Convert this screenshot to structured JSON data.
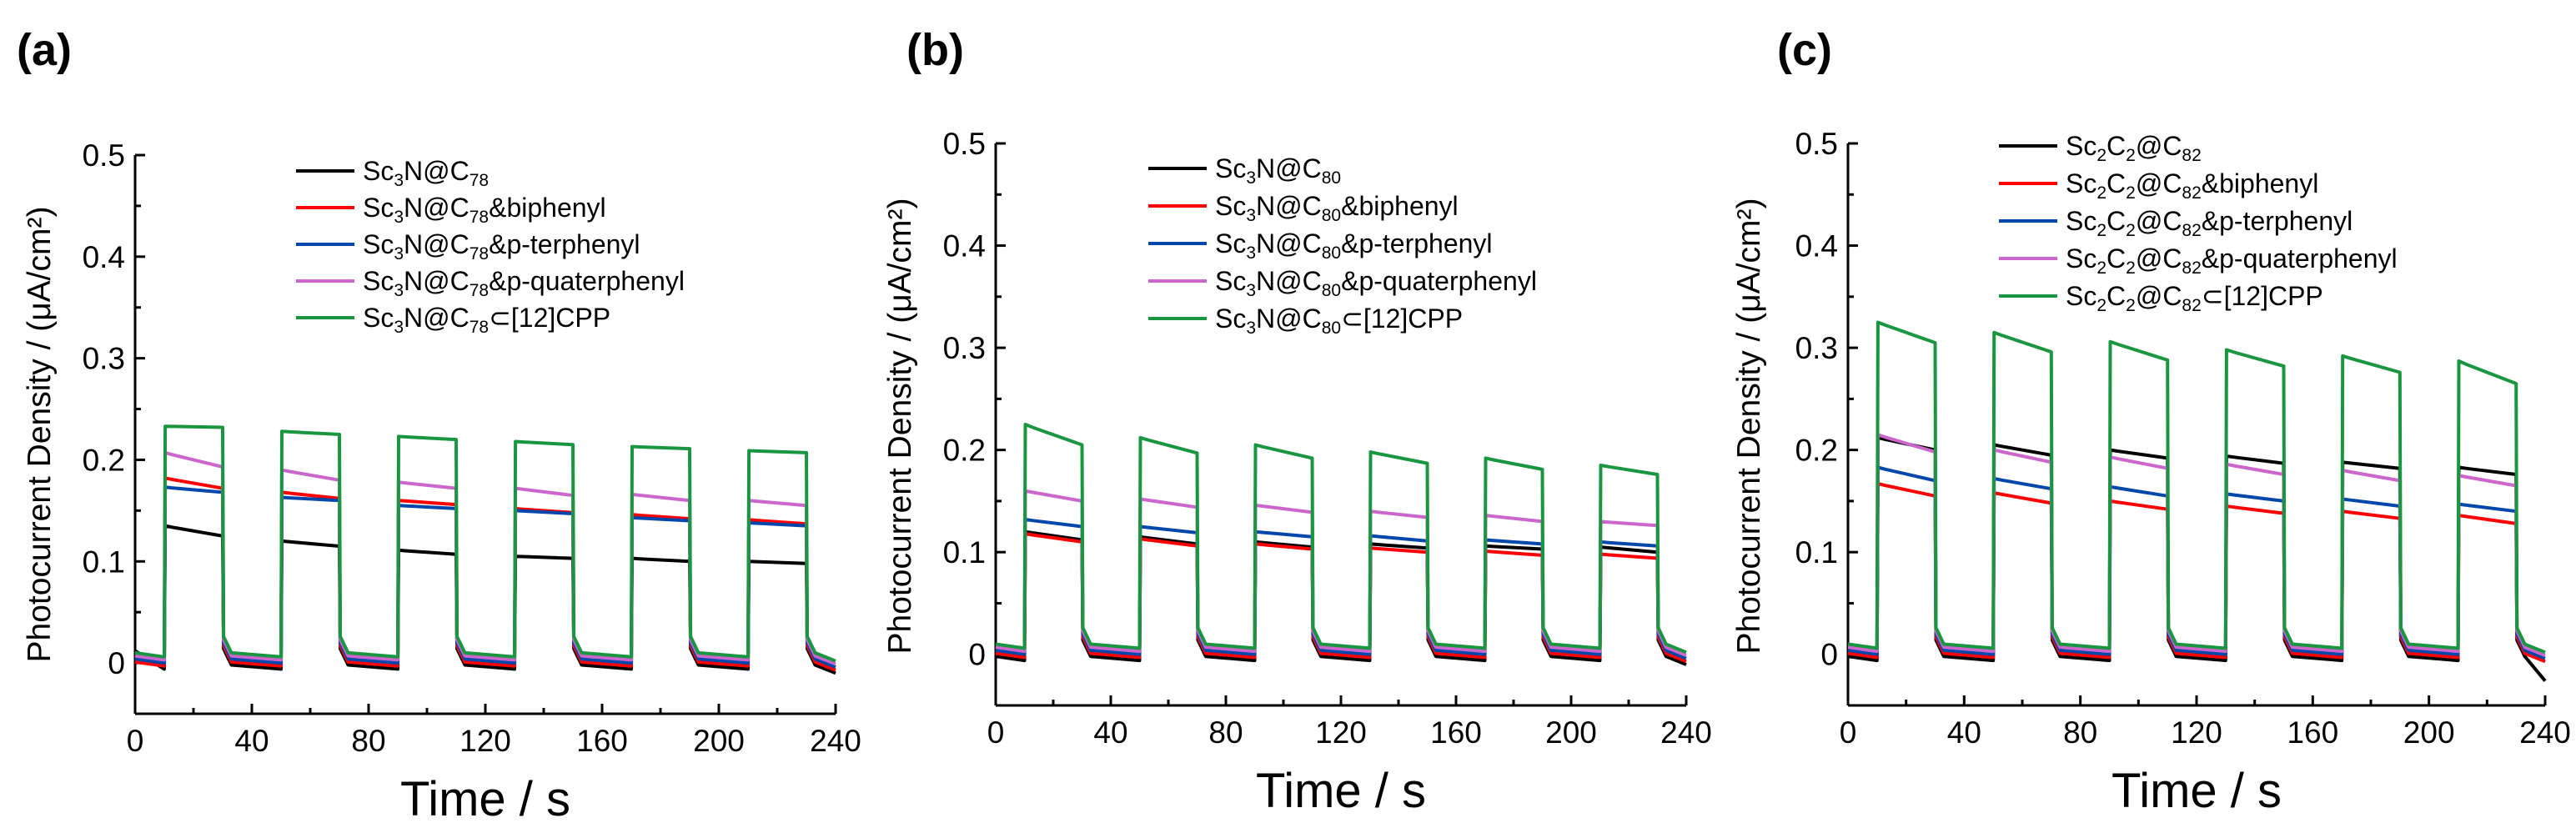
{
  "chart_data": [
    {
      "panel": "(a)",
      "type": "line",
      "xlabel": "Time / s",
      "ylabel": "Photocurrent Density / (μA/cm²)",
      "xlim": [
        0,
        240
      ],
      "ylim": [
        -0.05,
        0.5
      ],
      "xticks": [
        0,
        40,
        80,
        120,
        160,
        200,
        240
      ],
      "yticks": [
        0,
        0.1,
        0.2,
        0.3,
        0.4,
        0.5
      ],
      "legend_position": "top-right",
      "on_intervals": [
        [
          10,
          30
        ],
        [
          50,
          70
        ],
        [
          90,
          110
        ],
        [
          130,
          150
        ],
        [
          170,
          190
        ],
        [
          210,
          230
        ]
      ],
      "off_level": 0.0,
      "series": [
        {
          "name": "Sc3N@C78",
          "label": [
            {
              "t": "Sc"
            },
            {
              "t": "3",
              "s": "sub"
            },
            {
              "t": "N@C"
            },
            {
              "t": "78",
              "s": "sub"
            }
          ],
          "color": "#000000",
          "on_values": [
            [
              0.135,
              0.125
            ],
            [
              0.12,
              0.115
            ],
            [
              0.111,
              0.107
            ],
            [
              0.105,
              0.103
            ],
            [
              0.103,
              0.1
            ],
            [
              0.1,
              0.098
            ]
          ]
        },
        {
          "name": "Sc3N@C78&biphenyl",
          "label": [
            {
              "t": "Sc"
            },
            {
              "t": "3",
              "s": "sub"
            },
            {
              "t": "N@C"
            },
            {
              "t": "78",
              "s": "sub"
            },
            {
              "t": "&biphenyl"
            }
          ],
          "color": "#ff0000",
          "on_values": [
            [
              0.182,
              0.172
            ],
            [
              0.168,
              0.162
            ],
            [
              0.16,
              0.156
            ],
            [
              0.152,
              0.148
            ],
            [
              0.146,
              0.142
            ],
            [
              0.141,
              0.137
            ]
          ]
        },
        {
          "name": "Sc3N@C78&p-terphenyl",
          "label": [
            {
              "t": "Sc"
            },
            {
              "t": "3",
              "s": "sub"
            },
            {
              "t": "N@C"
            },
            {
              "t": "78",
              "s": "sub"
            },
            {
              "t": "&p-terphenyl"
            }
          ],
          "color": "#0047ab",
          "on_values": [
            [
              0.173,
              0.168
            ],
            [
              0.163,
              0.16
            ],
            [
              0.155,
              0.152
            ],
            [
              0.15,
              0.147
            ],
            [
              0.143,
              0.14
            ],
            [
              0.138,
              0.135
            ]
          ]
        },
        {
          "name": "Sc3N@C78&p-quaterphenyl",
          "label": [
            {
              "t": "Sc"
            },
            {
              "t": "3",
              "s": "sub"
            },
            {
              "t": "N@C"
            },
            {
              "t": "78",
              "s": "sub"
            },
            {
              "t": "&p-quaterphenyl"
            }
          ],
          "color": "#cc66cc",
          "on_values": [
            [
              0.207,
              0.193
            ],
            [
              0.19,
              0.18
            ],
            [
              0.178,
              0.172
            ],
            [
              0.172,
              0.165
            ],
            [
              0.166,
              0.16
            ],
            [
              0.16,
              0.155
            ]
          ]
        },
        {
          "name": "Sc3N@C78⊂[12]CPP",
          "label": [
            {
              "t": "Sc"
            },
            {
              "t": "3",
              "s": "sub"
            },
            {
              "t": "N@C"
            },
            {
              "t": "78",
              "s": "sub"
            },
            {
              "t": "⊂[12]CPP"
            }
          ],
          "color": "#1a9641",
          "on_values": [
            [
              0.233,
              0.232
            ],
            [
              0.228,
              0.225
            ],
            [
              0.223,
              0.22
            ],
            [
              0.218,
              0.215
            ],
            [
              0.213,
              0.211
            ],
            [
              0.209,
              0.207
            ]
          ]
        }
      ]
    },
    {
      "panel": "(b)",
      "type": "line",
      "xlabel": "Time / s",
      "ylabel": "Photocurrent Density / (μA/cm²)",
      "xlim": [
        0,
        240
      ],
      "ylim": [
        -0.05,
        0.5
      ],
      "xticks": [
        0,
        40,
        80,
        120,
        160,
        200,
        240
      ],
      "yticks": [
        0,
        0.1,
        0.2,
        0.3,
        0.4,
        0.5
      ],
      "legend_position": "top-right",
      "on_intervals": [
        [
          10,
          30
        ],
        [
          50,
          70
        ],
        [
          90,
          110
        ],
        [
          130,
          150
        ],
        [
          170,
          190
        ],
        [
          210,
          230
        ]
      ],
      "off_level": 0.0,
      "series": [
        {
          "name": "Sc3N@C80",
          "label": [
            {
              "t": "Sc"
            },
            {
              "t": "3",
              "s": "sub"
            },
            {
              "t": "N@C"
            },
            {
              "t": "80",
              "s": "sub"
            }
          ],
          "color": "#000000",
          "on_values": [
            [
              0.12,
              0.112
            ],
            [
              0.115,
              0.108
            ],
            [
              0.11,
              0.105
            ],
            [
              0.108,
              0.104
            ],
            [
              0.106,
              0.103
            ],
            [
              0.105,
              0.1
            ]
          ]
        },
        {
          "name": "Sc3N@C80&biphenyl",
          "label": [
            {
              "t": "Sc"
            },
            {
              "t": "3",
              "s": "sub"
            },
            {
              "t": "N@C"
            },
            {
              "t": "80",
              "s": "sub"
            },
            {
              "t": "&biphenyl"
            }
          ],
          "color": "#ff0000",
          "on_values": [
            [
              0.118,
              0.11
            ],
            [
              0.113,
              0.106
            ],
            [
              0.108,
              0.103
            ],
            [
              0.104,
              0.1
            ],
            [
              0.101,
              0.097
            ],
            [
              0.098,
              0.094
            ]
          ]
        },
        {
          "name": "Sc3N@C80&p-terphenyl",
          "label": [
            {
              "t": "Sc"
            },
            {
              "t": "3",
              "s": "sub"
            },
            {
              "t": "N@C"
            },
            {
              "t": "80",
              "s": "sub"
            },
            {
              "t": "&p-terphenyl"
            }
          ],
          "color": "#0047ab",
          "on_values": [
            [
              0.132,
              0.125
            ],
            [
              0.125,
              0.119
            ],
            [
              0.12,
              0.115
            ],
            [
              0.116,
              0.111
            ],
            [
              0.112,
              0.108
            ],
            [
              0.11,
              0.106
            ]
          ]
        },
        {
          "name": "Sc3N@C80&p-quaterphenyl",
          "label": [
            {
              "t": "Sc"
            },
            {
              "t": "3",
              "s": "sub"
            },
            {
              "t": "N@C"
            },
            {
              "t": "80",
              "s": "sub"
            },
            {
              "t": "&p-quaterphenyl"
            }
          ],
          "color": "#cc66cc",
          "on_values": [
            [
              0.16,
              0.15
            ],
            [
              0.152,
              0.144
            ],
            [
              0.146,
              0.139
            ],
            [
              0.14,
              0.134
            ],
            [
              0.136,
              0.13
            ],
            [
              0.13,
              0.126
            ]
          ]
        },
        {
          "name": "Sc3N@C80⊂[12]CPP",
          "label": [
            {
              "t": "Sc"
            },
            {
              "t": "3",
              "s": "sub"
            },
            {
              "t": "N@C"
            },
            {
              "t": "80",
              "s": "sub"
            },
            {
              "t": "⊂[12]CPP"
            }
          ],
          "color": "#1a9641",
          "on_values": [
            [
              0.225,
              0.205
            ],
            [
              0.212,
              0.197
            ],
            [
              0.205,
              0.192
            ],
            [
              0.198,
              0.187
            ],
            [
              0.192,
              0.181
            ],
            [
              0.185,
              0.176
            ]
          ]
        }
      ]
    },
    {
      "panel": "(c)",
      "type": "line",
      "xlabel": "Time / s",
      "ylabel": "Photocurrent Density / (μA/cm²)",
      "xlim": [
        0,
        240
      ],
      "ylim": [
        -0.05,
        0.5
      ],
      "xticks": [
        0,
        40,
        80,
        120,
        160,
        200,
        240
      ],
      "yticks": [
        0,
        0.1,
        0.2,
        0.3,
        0.4,
        0.5
      ],
      "legend_position": "top-right",
      "on_intervals": [
        [
          10,
          30
        ],
        [
          50,
          70
        ],
        [
          90,
          110
        ],
        [
          130,
          150
        ],
        [
          170,
          190
        ],
        [
          210,
          230
        ]
      ],
      "off_level": 0.0,
      "series": [
        {
          "name": "Sc2C2@C82",
          "label": [
            {
              "t": "Sc"
            },
            {
              "t": "2",
              "s": "sub"
            },
            {
              "t": "C"
            },
            {
              "t": "2",
              "s": "sub"
            },
            {
              "t": "@C"
            },
            {
              "t": "82",
              "s": "sub"
            }
          ],
          "color": "#000000",
          "on_values": [
            [
              0.212,
              0.2
            ],
            [
              0.205,
              0.195
            ],
            [
              0.2,
              0.192
            ],
            [
              0.194,
              0.187
            ],
            [
              0.188,
              0.182
            ],
            [
              0.183,
              0.176
            ]
          ]
        },
        {
          "name": "Sc2C2@C82&biphenyl",
          "label": [
            {
              "t": "Sc"
            },
            {
              "t": "2",
              "s": "sub"
            },
            {
              "t": "C"
            },
            {
              "t": "2",
              "s": "sub"
            },
            {
              "t": "@C"
            },
            {
              "t": "82",
              "s": "sub"
            },
            {
              "t": "&biphenyl"
            }
          ],
          "color": "#ff0000",
          "on_values": [
            [
              0.167,
              0.155
            ],
            [
              0.158,
              0.148
            ],
            [
              0.15,
              0.142
            ],
            [
              0.145,
              0.138
            ],
            [
              0.14,
              0.133
            ],
            [
              0.136,
              0.128
            ]
          ]
        },
        {
          "name": "Sc2C2@C82&p-terphenyl",
          "label": [
            {
              "t": "Sc"
            },
            {
              "t": "2",
              "s": "sub"
            },
            {
              "t": "C"
            },
            {
              "t": "2",
              "s": "sub"
            },
            {
              "t": "@C"
            },
            {
              "t": "82",
              "s": "sub"
            },
            {
              "t": "&p-terphenyl"
            }
          ],
          "color": "#0047ab",
          "on_values": [
            [
              0.183,
              0.17
            ],
            [
              0.172,
              0.162
            ],
            [
              0.164,
              0.155
            ],
            [
              0.157,
              0.15
            ],
            [
              0.152,
              0.145
            ],
            [
              0.147,
              0.14
            ]
          ]
        },
        {
          "name": "Sc2C2@C82&p-quaterphenyl",
          "label": [
            {
              "t": "Sc"
            },
            {
              "t": "2",
              "s": "sub"
            },
            {
              "t": "C"
            },
            {
              "t": "2",
              "s": "sub"
            },
            {
              "t": "@C"
            },
            {
              "t": "82",
              "s": "sub"
            },
            {
              "t": "&p-quaterphenyl"
            }
          ],
          "color": "#cc66cc",
          "on_values": [
            [
              0.215,
              0.198
            ],
            [
              0.2,
              0.188
            ],
            [
              0.193,
              0.182
            ],
            [
              0.186,
              0.176
            ],
            [
              0.18,
              0.17
            ],
            [
              0.175,
              0.165
            ]
          ]
        },
        {
          "name": "Sc2C2@C82⊂[12]CPP",
          "label": [
            {
              "t": "Sc"
            },
            {
              "t": "2",
              "s": "sub"
            },
            {
              "t": "C"
            },
            {
              "t": "2",
              "s": "sub"
            },
            {
              "t": "@C"
            },
            {
              "t": "82",
              "s": "sub"
            },
            {
              "t": "⊂[12]CPP"
            }
          ],
          "color": "#1a9641",
          "on_values": [
            [
              0.325,
              0.305
            ],
            [
              0.315,
              0.296
            ],
            [
              0.306,
              0.288
            ],
            [
              0.298,
              0.282
            ],
            [
              0.292,
              0.276
            ],
            [
              0.287,
              0.265
            ]
          ]
        }
      ]
    }
  ]
}
